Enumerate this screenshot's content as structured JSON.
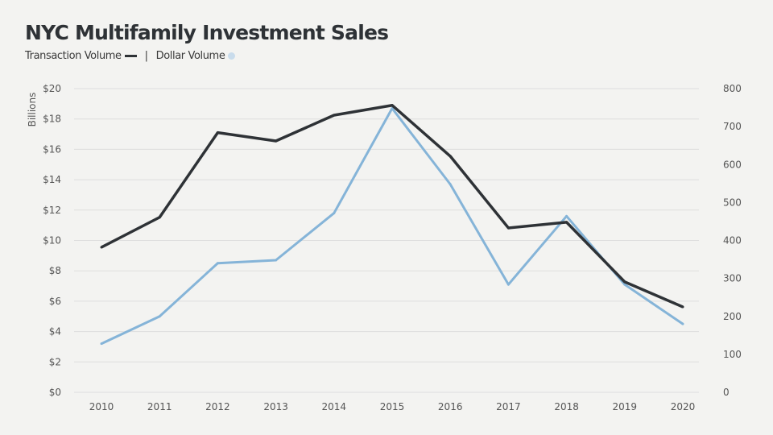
{
  "chart_data": {
    "type": "line",
    "title": "NYC Multifamily Investment Sales",
    "legend": {
      "transaction": "Transaction Volume",
      "separator": "|",
      "dollar": "Dollar Volume"
    },
    "ylabel_left": "Billions",
    "categories": [
      "2010",
      "2011",
      "2012",
      "2013",
      "2014",
      "2015",
      "2016",
      "2017",
      "2018",
      "2019",
      "2020"
    ],
    "y_left": {
      "range": [
        0,
        20
      ],
      "ticks": [
        "$0",
        "$2",
        "$4",
        "$6",
        "$8",
        "$10",
        "$12",
        "$14",
        "$16",
        "$18",
        "$20"
      ]
    },
    "y_right": {
      "range": [
        0,
        800
      ],
      "ticks": [
        "0",
        "100",
        "200",
        "300",
        "400",
        "500",
        "600",
        "700",
        "800"
      ]
    },
    "series": [
      {
        "name": "Transaction Volume",
        "axis": "right",
        "color": "#2e3236",
        "values": [
          382,
          461,
          684,
          662,
          730,
          756,
          622,
          433,
          448,
          291,
          225
        ]
      },
      {
        "name": "Dollar Volume",
        "axis": "left",
        "color": "#85b4d8",
        "values": [
          3.2,
          5.0,
          8.5,
          8.7,
          11.8,
          18.7,
          13.7,
          7.1,
          11.6,
          7.1,
          4.5
        ]
      }
    ],
    "grid": true
  }
}
